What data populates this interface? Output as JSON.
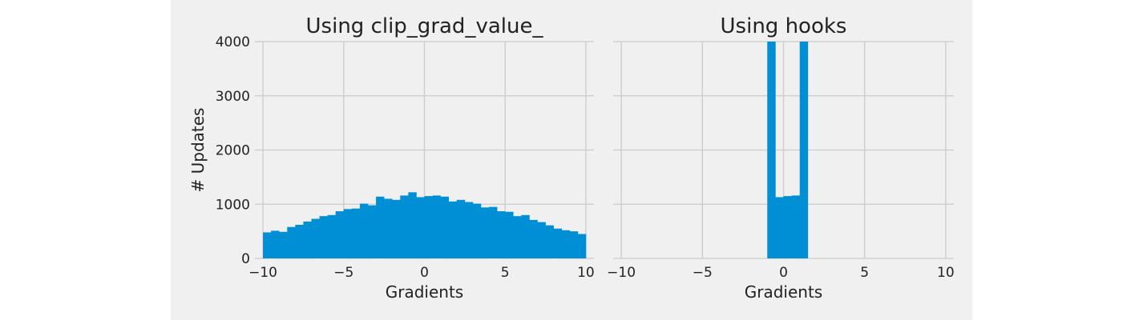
{
  "chart_data": [
    {
      "type": "bar",
      "title": "Using clip_grad_value_",
      "xlabel": "Gradients",
      "ylabel": "# Updates",
      "xlim": [
        -10.5,
        10.5
      ],
      "ylim": [
        0,
        4000
      ],
      "xticks": [
        -10,
        -5,
        0,
        5,
        10
      ],
      "xtick_labels": [
        "−10",
        "−5",
        "0",
        "5",
        "10"
      ],
      "yticks": [
        0,
        1000,
        2000,
        3000,
        4000
      ],
      "ytick_labels": [
        "0",
        "1000",
        "2000",
        "3000",
        "4000"
      ],
      "grid": true,
      "color": "#008fd5",
      "bin_edges": [
        -10,
        -9.5,
        -9,
        -8.5,
        -8,
        -7.5,
        -7,
        -6.5,
        -6,
        -5.5,
        -5,
        -4.5,
        -4,
        -3.5,
        -3,
        -2.5,
        -2,
        -1.5,
        -1,
        -0.5,
        0,
        0.5,
        1,
        1.5,
        2,
        2.5,
        3,
        3.5,
        4,
        4.5,
        5,
        5.5,
        6,
        6.5,
        7,
        7.5,
        8,
        8.5,
        9,
        9.5,
        10
      ],
      "values": [
        480,
        510,
        490,
        580,
        620,
        680,
        730,
        780,
        800,
        870,
        910,
        920,
        1010,
        980,
        1140,
        1100,
        1080,
        1160,
        1220,
        1130,
        1150,
        1160,
        1140,
        1050,
        1080,
        1040,
        1010,
        940,
        950,
        870,
        860,
        780,
        800,
        710,
        670,
        610,
        550,
        520,
        500,
        450
      ]
    },
    {
      "type": "bar",
      "title": "Using hooks",
      "xlabel": "Gradients",
      "xlim": [
        -10.5,
        10.5
      ],
      "ylim": [
        0,
        4000
      ],
      "xticks": [
        -10,
        -5,
        0,
        5,
        10
      ],
      "xtick_labels": [
        "−10",
        "−5",
        "0",
        "5",
        "10"
      ],
      "yticks": [
        0,
        1000,
        2000,
        3000,
        4000
      ],
      "grid": true,
      "color": "#008fd5",
      "bin_edges": [
        -1,
        -0.5,
        0,
        0.5,
        1,
        1.5
      ],
      "values": [
        4000,
        1130,
        1150,
        1160,
        4000
      ]
    }
  ]
}
